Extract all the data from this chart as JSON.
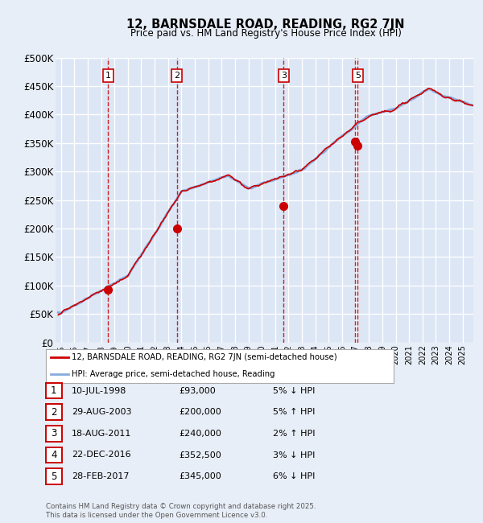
{
  "title": "12, BARNSDALE ROAD, READING, RG2 7JN",
  "subtitle": "Price paid vs. HM Land Registry's House Price Index (HPI)",
  "ylim": [
    0,
    500000
  ],
  "yticks": [
    0,
    50000,
    100000,
    150000,
    200000,
    250000,
    300000,
    350000,
    400000,
    450000,
    500000
  ],
  "ytick_labels": [
    "£0",
    "£50K",
    "£100K",
    "£150K",
    "£200K",
    "£250K",
    "£300K",
    "£350K",
    "£400K",
    "£450K",
    "£500K"
  ],
  "bg_color": "#e8eef7",
  "plot_bg_color": "#dce6f5",
  "grid_color": "#ffffff",
  "sale_dates_x": [
    1998.53,
    2003.66,
    2011.63,
    2016.98,
    2017.16
  ],
  "sale_prices_y": [
    93000,
    200000,
    240000,
    352500,
    345000
  ],
  "sale_labels": [
    "1",
    "2",
    "3",
    "4",
    "5"
  ],
  "vline_color": "#cc0000",
  "vline_show_indices": [
    0,
    1,
    2,
    4
  ],
  "table_data": [
    {
      "num": "1",
      "date": "10-JUL-1998",
      "price": "£93,000",
      "pct": "5% ↓ HPI"
    },
    {
      "num": "2",
      "date": "29-AUG-2003",
      "price": "£200,000",
      "pct": "5% ↑ HPI"
    },
    {
      "num": "3",
      "date": "18-AUG-2011",
      "price": "£240,000",
      "pct": "2% ↑ HPI"
    },
    {
      "num": "4",
      "date": "22-DEC-2016",
      "price": "£352,500",
      "pct": "3% ↓ HPI"
    },
    {
      "num": "5",
      "date": "28-FEB-2017",
      "price": "£345,000",
      "pct": "6% ↓ HPI"
    }
  ],
  "footer": "Contains HM Land Registry data © Crown copyright and database right 2025.\nThis data is licensed under the Open Government Licence v3.0.",
  "legend_line1": "12, BARNSDALE ROAD, READING, RG2 7JN (semi-detached house)",
  "legend_line2": "HPI: Average price, semi-detached house, Reading",
  "red_line_color": "#cc0000",
  "blue_line_color": "#88aadd",
  "xlim_start": 1994.6,
  "xlim_end": 2025.8,
  "xtick_start": 1995,
  "xtick_end": 2026
}
